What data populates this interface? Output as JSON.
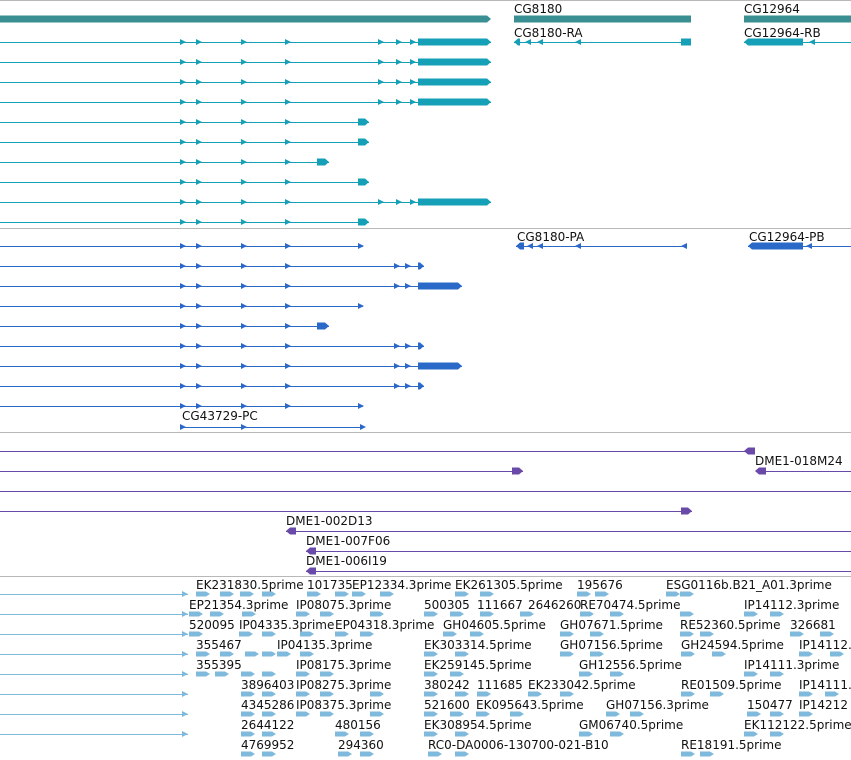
{
  "colors": {
    "genes": "#3a8f93",
    "mrna": "#15a0b8",
    "cds": "#2a69c8",
    "clones": "#6a4aa8",
    "ests": "#7fbadc",
    "separator": "#b8b8b8"
  },
  "tracks": {
    "genes": {
      "labels": [
        "CG8180",
        "CG12964"
      ]
    },
    "mrna": {
      "labels": [
        "CG8180-RA",
        "CG12964-RB"
      ]
    },
    "cds": {
      "labels": [
        "CG8180-PA",
        "CG12964-PB",
        "CG43729-PC"
      ]
    },
    "clones": {
      "labels": [
        "DME1-018M24",
        "DME1-002D13",
        "DME1-007F06",
        "DME1-006I19"
      ]
    },
    "ests": {
      "labels": [
        "EK231830.5prime",
        "101735",
        "EP12334.3prime",
        "EK261305.5prime",
        "195676",
        "ESG0116b.B21_A01.3prime",
        "EP21354.3prime",
        "IP08075.3prime",
        "500305",
        "111667",
        "2646260",
        "RE70474.5prime",
        "IP14112.3prime",
        "520095",
        "IP04335.3prime",
        "EP04318.3prime",
        "GH04605.5prime",
        "GH07671.5prime",
        "RE52360.5prime",
        "326681",
        "355467",
        "IP04135.3prime",
        "EK303314.5prime",
        "GH07156.5prime",
        "GH24594.5prime",
        "IP14112.",
        "355395",
        "IP08175.3prime",
        "EK259145.5prime",
        "GH12556.5prime",
        "IP14111.3prime",
        "3896403",
        "IP08275.3prime",
        "380242",
        "111685",
        "EK233042.5prime",
        "RE01509.5prime",
        "IP14111.",
        "4345286",
        "IP08375.3prime",
        "521600",
        "EK095643.5prime",
        "GH07156.3prime",
        "150477",
        "IP14212",
        "2644122",
        "480156",
        "EK308954.5prime",
        "GM06740.5prime",
        "EK112122.5prime",
        "4769952",
        "294360",
        "RC0-DA0006-130700-021-B10",
        "RE18191.5prime"
      ]
    }
  }
}
